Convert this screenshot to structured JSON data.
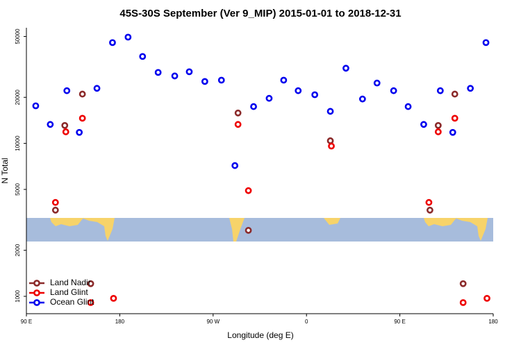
{
  "chart_data": {
    "type": "scatter",
    "title": "45S-30S September (Ver 9_MIP)   2015-01-01 to 2018-12-31",
    "x_label": "Longitude (deg E)",
    "y_label": "N Total",
    "log_y": true,
    "legend": "bottom-left",
    "xlim": [
      90,
      540
    ],
    "ylim": [
      770,
      57000
    ],
    "xticks": [
      {
        "value": 90,
        "label": "90 E"
      },
      180,
      {
        "value": 270,
        "label": "90 W"
      },
      {
        "value": 360,
        "label": "0"
      },
      {
        "value": 450,
        "label": "90 E"
      },
      {
        "value": 540,
        "label": "180"
      }
    ],
    "yticks": [
      1000,
      2000,
      5000,
      10000,
      20000,
      50000
    ],
    "series": [
      {
        "name": "Land Nadir",
        "color": "#8b2a2a",
        "x": [
          118,
          127,
          144,
          152,
          294,
          304,
          383,
          479,
          487,
          503,
          511
        ],
        "values": [
          3660,
          13100,
          21000,
          1210,
          15800,
          2700,
          10400,
          3660,
          13100,
          21000,
          1210
        ]
      },
      {
        "name": "Land Glint",
        "color": "#ee0000",
        "x": [
          118,
          128,
          144,
          152,
          174,
          294,
          304,
          384,
          478,
          487,
          503,
          511,
          534
        ],
        "values": [
          4110,
          11900,
          14600,
          910,
          970,
          13300,
          4910,
          9600,
          4110,
          11900,
          14600,
          910,
          970
        ]
      },
      {
        "name": "Ocean Glint",
        "color": "#0000ee",
        "x": [
          99,
          113,
          129,
          141,
          158,
          173,
          188,
          202,
          217,
          233,
          247,
          262,
          278,
          291,
          309,
          324,
          338,
          352,
          368,
          383,
          398,
          414,
          428,
          444,
          458,
          473,
          489,
          501,
          518,
          533
        ],
        "values": [
          17600,
          13300,
          22100,
          11800,
          22900,
          45600,
          49500,
          37000,
          29100,
          27600,
          29400,
          25400,
          25900,
          7160,
          17400,
          19700,
          25900,
          22100,
          20800,
          16200,
          31000,
          19500,
          24800,
          22100,
          17400,
          13300,
          22100,
          11800,
          22900,
          45600
        ]
      }
    ]
  }
}
